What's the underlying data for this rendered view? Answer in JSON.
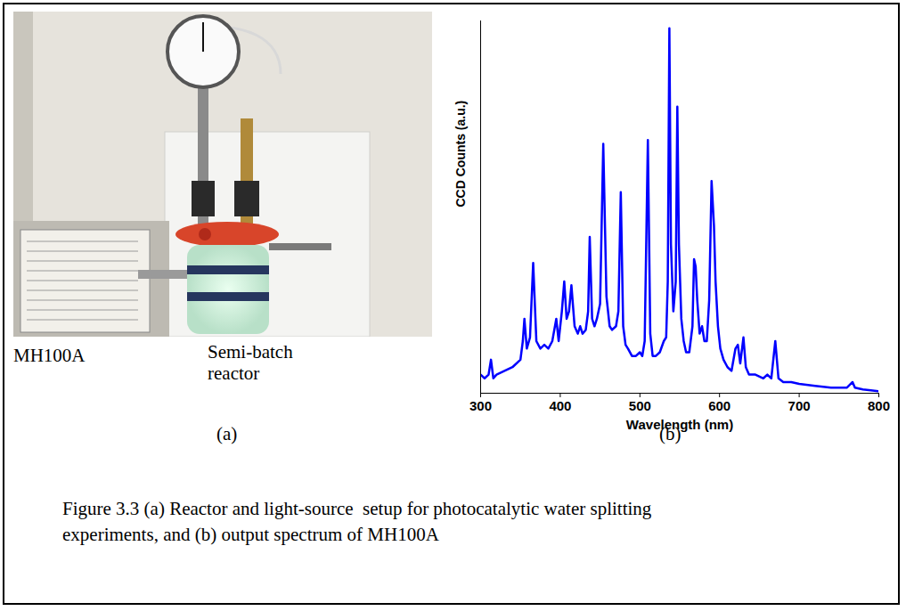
{
  "figure": {
    "caption": "Figure 3.3 (a) Reactor and light-source  setup for photocatalytic water splitting experiments, and (b) output spectrum of MH100A",
    "panel_a": {
      "letter": "(a)",
      "labels": [
        "MH100A",
        "Semi-batch reactor"
      ]
    },
    "panel_b": {
      "letter": "(b)"
    }
  },
  "chart_data": {
    "type": "line",
    "xlabel": "Wavelength (nm)",
    "ylabel": "CCD Counts (a.u.)",
    "x": [
      300,
      305,
      310,
      313,
      316,
      320,
      330,
      340,
      350,
      353,
      355,
      358,
      362,
      366,
      370,
      375,
      380,
      385,
      390,
      395,
      398,
      402,
      405,
      408,
      411,
      414,
      418,
      422,
      425,
      428,
      432,
      435,
      437,
      440,
      443,
      446,
      450,
      454,
      458,
      462,
      465,
      470,
      473,
      476,
      479,
      482,
      485,
      490,
      495,
      500,
      503,
      506,
      510,
      513,
      516,
      520,
      525,
      530,
      533,
      535,
      537,
      539,
      542,
      545,
      547,
      549,
      552,
      555,
      558,
      562,
      566,
      568,
      570,
      572,
      575,
      578,
      581,
      584,
      587,
      590,
      593,
      595,
      598,
      601,
      605,
      610,
      615,
      620,
      623,
      626,
      630,
      633,
      637,
      645,
      655,
      660,
      665,
      670,
      674,
      680,
      690,
      700,
      720,
      740,
      760,
      767,
      770,
      780,
      790,
      800
    ],
    "values": [
      5,
      4,
      5,
      9,
      4,
      5,
      6,
      7,
      9,
      14,
      20,
      12,
      15,
      35,
      14,
      12,
      13,
      12,
      14,
      20,
      14,
      22,
      30,
      20,
      22,
      29,
      18,
      16,
      18,
      16,
      17,
      22,
      42,
      20,
      18,
      20,
      24,
      67,
      26,
      18,
      17,
      18,
      22,
      54,
      18,
      13,
      12,
      10,
      10,
      11,
      10,
      14,
      68,
      16,
      10,
      10,
      11,
      14,
      15,
      30,
      98,
      40,
      22,
      30,
      77,
      40,
      20,
      14,
      11,
      11,
      18,
      36,
      34,
      25,
      16,
      18,
      14,
      14,
      25,
      57,
      45,
      30,
      18,
      12,
      9,
      7,
      6,
      12,
      13,
      8,
      15,
      7,
      5,
      5,
      4,
      5,
      4,
      14,
      4,
      3,
      3,
      2.5,
      2,
      1.5,
      1.5,
      3,
      1.5,
      1,
      0.8,
      0.5
    ],
    "color": "#0000ff",
    "xlim": [
      300,
      800
    ],
    "xticks": [
      300,
      400,
      500,
      600,
      700,
      800
    ],
    "ylim": [
      0,
      100
    ],
    "tick_labels": "x",
    "grid": false
  }
}
